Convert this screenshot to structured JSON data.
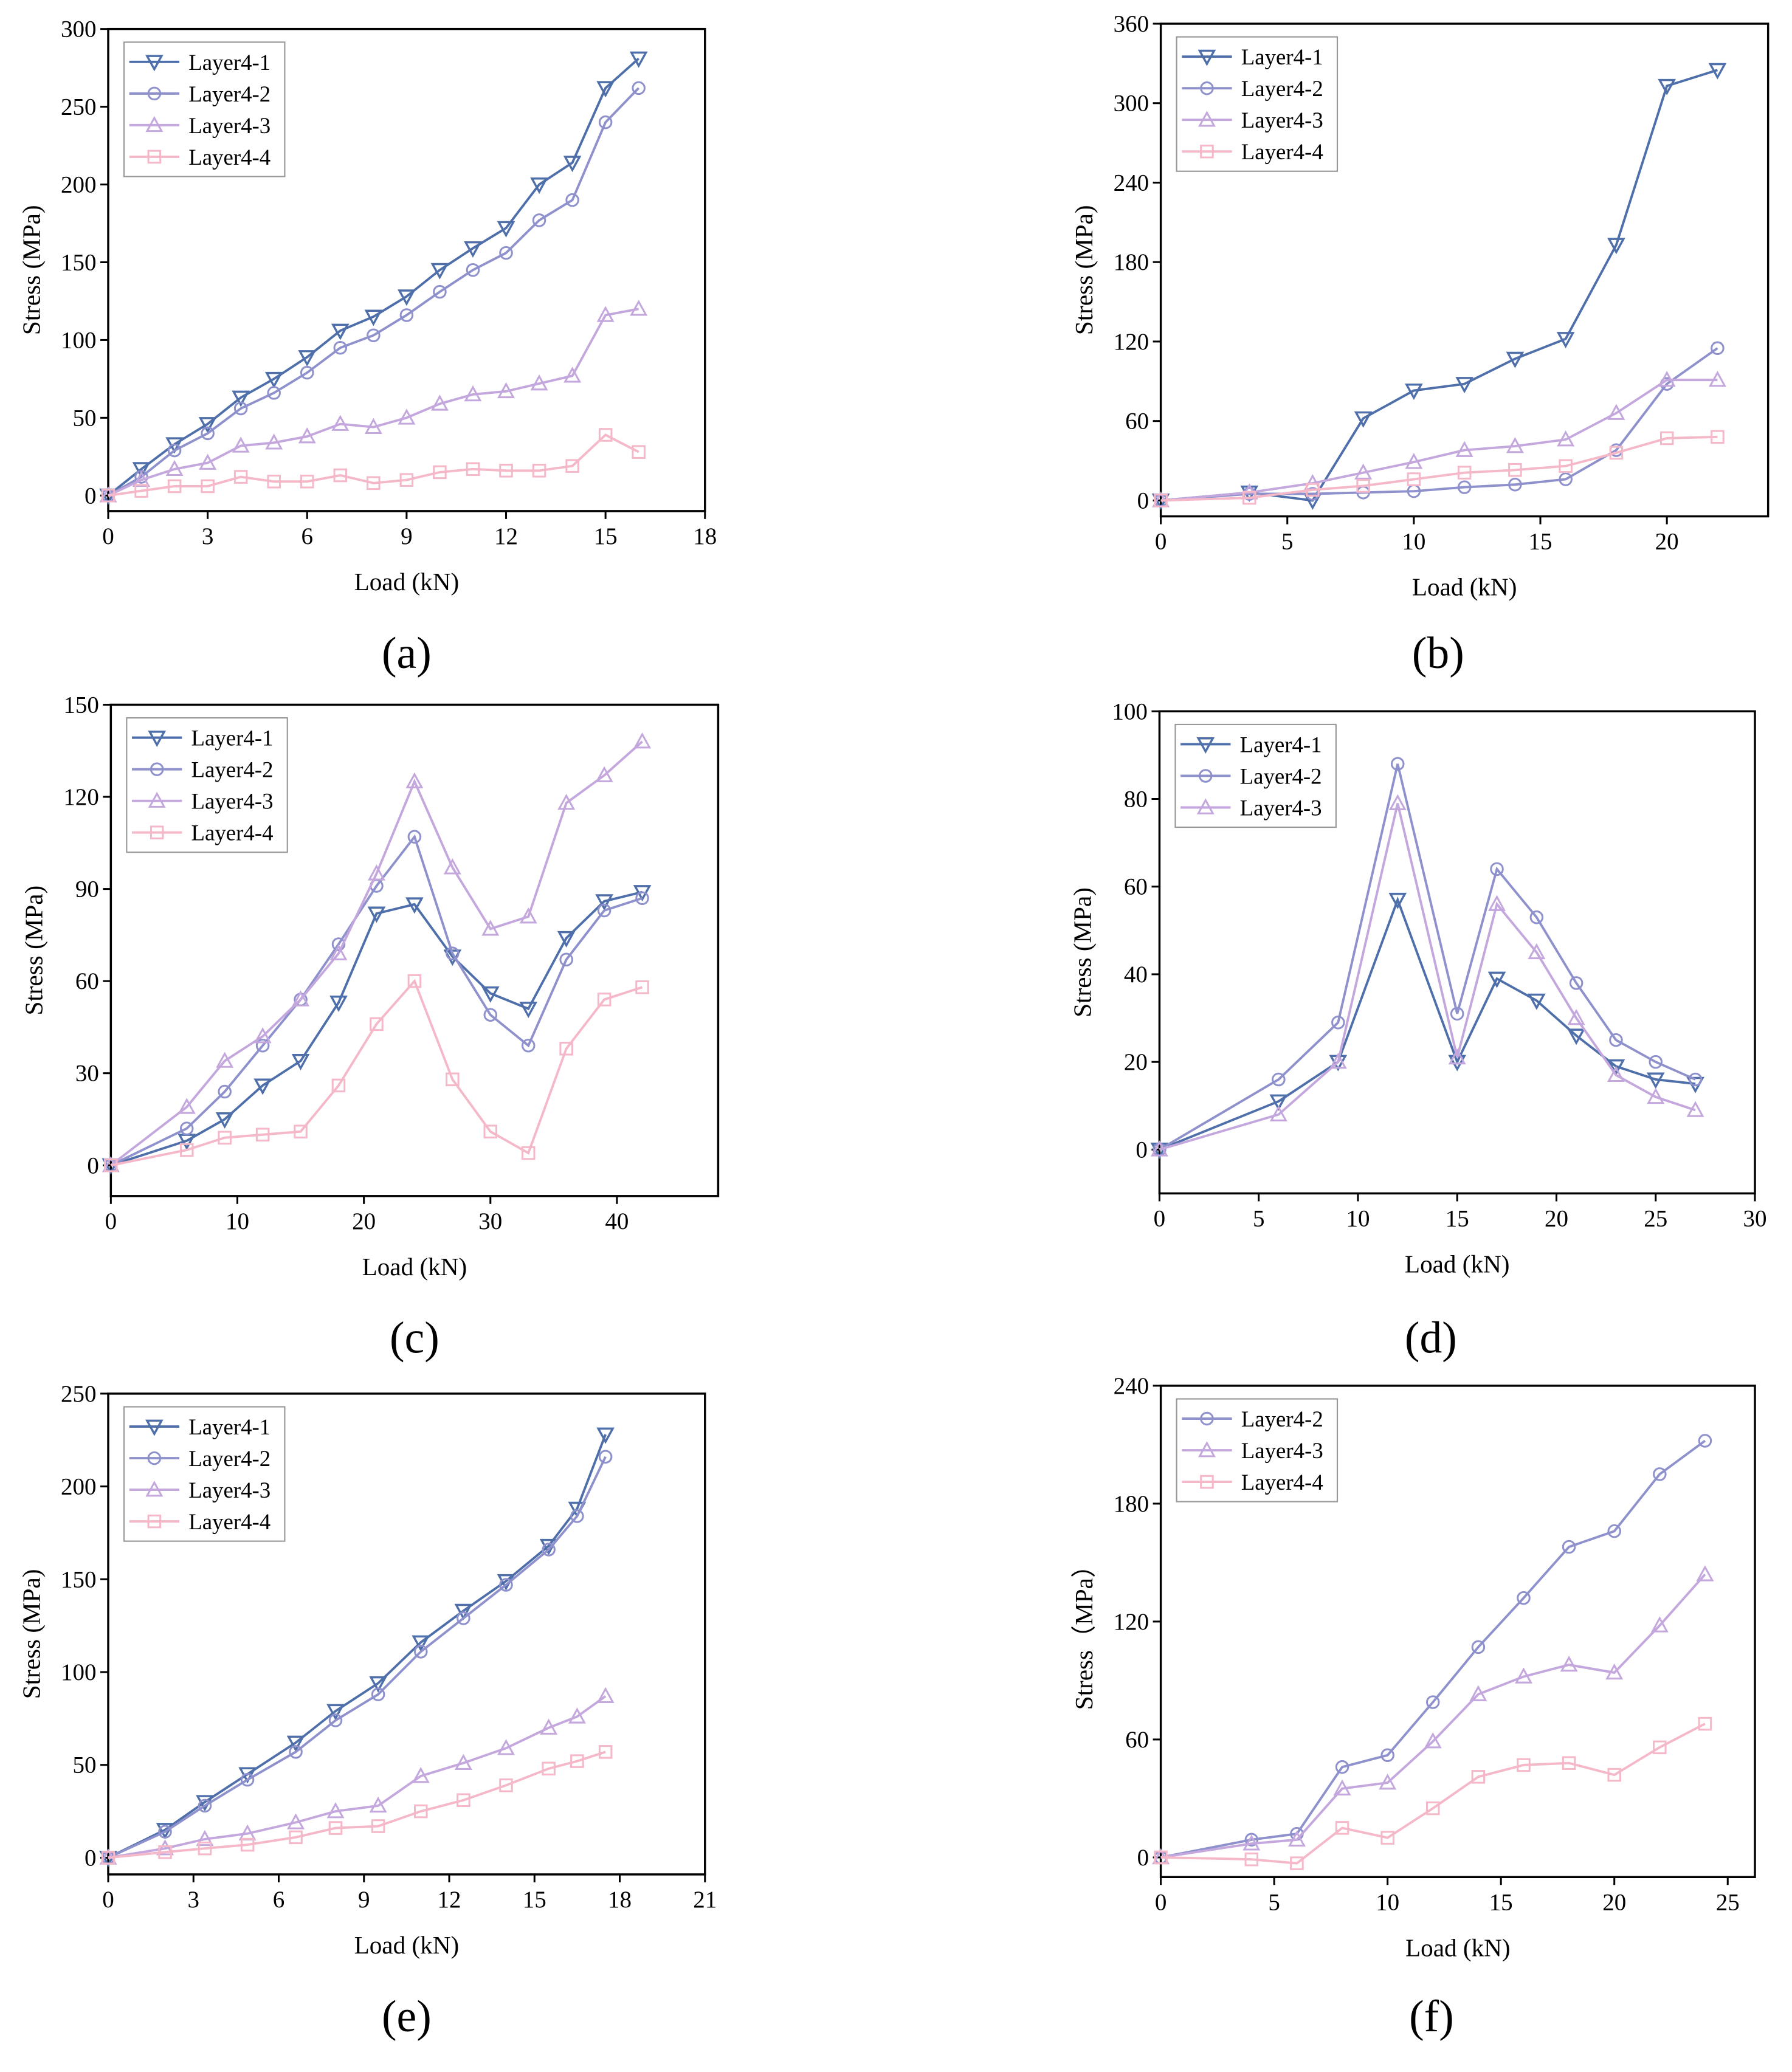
{
  "colors": {
    "Layer4-1": "#4e6faa",
    "Layer4-2": "#8e91cc",
    "Layer4-3": "#c3a7dd",
    "Layer4-4": "#f5b8c8"
  },
  "chart_data": [
    {
      "type": "line",
      "caption": "(a)",
      "xlabel": "Load (kN)",
      "ylabel": "Stress (MPa)",
      "xlim": [
        0,
        18
      ],
      "ylim": [
        -10,
        300
      ],
      "xticks": [
        0,
        3,
        6,
        9,
        12,
        15,
        18
      ],
      "yticks": [
        0,
        50,
        100,
        150,
        200,
        250,
        300
      ],
      "legend": "top-left",
      "x": [
        0,
        1,
        2,
        3,
        4,
        5,
        6,
        7,
        8,
        9,
        10,
        11,
        12,
        13,
        14,
        15,
        16
      ],
      "series": [
        {
          "name": "Layer4-1",
          "marker": "triangle-down",
          "values": [
            0,
            17,
            33,
            46,
            63,
            75,
            89,
            106,
            115,
            128,
            145,
            159,
            172,
            200,
            214,
            262,
            281
          ]
        },
        {
          "name": "Layer4-2",
          "marker": "circle",
          "values": [
            0,
            12,
            29,
            40,
            56,
            66,
            79,
            95,
            103,
            116,
            131,
            145,
            156,
            177,
            190,
            240,
            262
          ]
        },
        {
          "name": "Layer4-3",
          "marker": "triangle-up",
          "values": [
            0,
            10,
            17,
            21,
            32,
            34,
            38,
            46,
            44,
            50,
            59,
            65,
            67,
            72,
            77,
            116,
            120
          ]
        },
        {
          "name": "Layer4-4",
          "marker": "square",
          "values": [
            0,
            3,
            6,
            6,
            12,
            9,
            9,
            13,
            8,
            10,
            15,
            17,
            16,
            16,
            19,
            39,
            28
          ]
        }
      ]
    },
    {
      "type": "line",
      "caption": "(b)",
      "xlabel": "Load (kN)",
      "ylabel": "Stress (MPa)",
      "xlim": [
        0,
        24
      ],
      "ylim": [
        -12,
        360
      ],
      "xticks": [
        0,
        5,
        10,
        15,
        20
      ],
      "yticks": [
        0,
        60,
        120,
        180,
        240,
        300,
        360
      ],
      "legend": "top-left",
      "x": [
        0,
        3.5,
        6,
        8,
        10,
        12,
        14,
        16,
        18,
        20,
        22
      ],
      "series": [
        {
          "name": "Layer4-1",
          "marker": "triangle-down",
          "values": [
            0,
            6,
            0,
            62,
            83,
            88,
            107,
            122,
            193,
            313,
            325
          ]
        },
        {
          "name": "Layer4-2",
          "marker": "circle",
          "values": [
            0,
            5,
            5,
            6,
            7,
            10,
            12,
            16,
            38,
            88,
            115
          ]
        },
        {
          "name": "Layer4-3",
          "marker": "triangle-up",
          "values": [
            0,
            6,
            13,
            21,
            29,
            38,
            41,
            46,
            66,
            91,
            91
          ]
        },
        {
          "name": "Layer4-4",
          "marker": "square",
          "values": [
            0,
            2,
            8,
            11,
            16,
            21,
            23,
            26,
            36,
            47,
            48
          ]
        }
      ]
    },
    {
      "type": "line",
      "caption": "(c)",
      "xlabel": "Load (kN)",
      "ylabel": "Stress (MPa)",
      "xlim": [
        0,
        48
      ],
      "ylim": [
        -10,
        150
      ],
      "xticks": [
        0,
        10,
        20,
        30,
        40
      ],
      "yticks": [
        0,
        30,
        60,
        90,
        120,
        150
      ],
      "legend": "top-left",
      "x": [
        0,
        6,
        9,
        12,
        15,
        18,
        21,
        24,
        27,
        30,
        33,
        36,
        39,
        42
      ],
      "series": [
        {
          "name": "Layer4-1",
          "marker": "triangle-down",
          "values": [
            0,
            8,
            15,
            26,
            34,
            53,
            82,
            85,
            68,
            56,
            51,
            74,
            86,
            89
          ]
        },
        {
          "name": "Layer4-2",
          "marker": "circle",
          "values": [
            0,
            12,
            24,
            39,
            54,
            72,
            91,
            107,
            69,
            49,
            39,
            67,
            83,
            87
          ]
        },
        {
          "name": "Layer4-3",
          "marker": "triangle-up",
          "values": [
            0,
            19,
            34,
            42,
            54,
            69,
            95,
            125,
            97,
            77,
            81,
            118,
            127,
            138
          ]
        },
        {
          "name": "Layer4-4",
          "marker": "square",
          "values": [
            0,
            5,
            9,
            10,
            11,
            26,
            46,
            60,
            28,
            11,
            4,
            38,
            54,
            58
          ]
        }
      ]
    },
    {
      "type": "line",
      "caption": "(d)",
      "xlabel": "Load (kN)",
      "ylabel": "Stress (MPa)",
      "xlim": [
        0,
        30
      ],
      "ylim": [
        -10,
        100
      ],
      "xticks": [
        0,
        5,
        10,
        15,
        20,
        25,
        30
      ],
      "yticks": [
        0,
        20,
        40,
        60,
        80,
        100
      ],
      "legend": "top-left",
      "x": [
        0,
        6,
        9,
        12,
        15,
        17,
        19,
        21,
        23,
        25,
        27
      ],
      "series": [
        {
          "name": "Layer4-1",
          "marker": "triangle-down",
          "values": [
            0,
            11,
            20,
            57,
            20,
            39,
            34,
            26,
            19,
            16,
            15
          ]
        },
        {
          "name": "Layer4-2",
          "marker": "circle",
          "values": [
            0,
            16,
            29,
            88,
            31,
            64,
            53,
            38,
            25,
            20,
            16
          ]
        },
        {
          "name": "Layer4-3",
          "marker": "triangle-up",
          "values": [
            0,
            8,
            20,
            79,
            21,
            56,
            45,
            30,
            17,
            12,
            9
          ]
        }
      ]
    },
    {
      "type": "line",
      "caption": "(e)",
      "xlabel": "Load (kN)",
      "ylabel": "Stress (MPa)",
      "xlim": [
        0,
        21
      ],
      "ylim": [
        -9,
        250
      ],
      "xticks": [
        0,
        3,
        6,
        9,
        12,
        15,
        18,
        21
      ],
      "yticks": [
        0,
        50,
        100,
        150,
        200,
        250
      ],
      "legend": "top-left",
      "x": [
        0,
        2,
        3.4,
        4.9,
        6.6,
        8,
        9.5,
        11,
        12.5,
        14,
        15.5,
        16.5,
        17.5
      ],
      "series": [
        {
          "name": "Layer4-1",
          "marker": "triangle-down",
          "values": [
            0,
            15,
            30,
            45,
            62,
            79,
            94,
            116,
            133,
            149,
            168,
            188,
            228
          ]
        },
        {
          "name": "Layer4-2",
          "marker": "circle",
          "values": [
            0,
            14,
            28,
            42,
            57,
            74,
            88,
            111,
            129,
            147,
            166,
            184,
            216
          ]
        },
        {
          "name": "Layer4-3",
          "marker": "triangle-up",
          "values": [
            0,
            5,
            10,
            13,
            19,
            25,
            28,
            44,
            51,
            59,
            70,
            76,
            87
          ]
        },
        {
          "name": "Layer4-4",
          "marker": "square",
          "values": [
            0,
            3,
            5,
            7,
            11,
            16,
            17,
            25,
            31,
            39,
            48,
            52,
            57
          ]
        }
      ]
    },
    {
      "type": "line",
      "caption": "(f)",
      "xlabel": "Load (kN)",
      "ylabel": "Stress（MPa）",
      "xlim": [
        0,
        26.2
      ],
      "ylim": [
        -10,
        240
      ],
      "xticks": [
        0,
        5,
        10,
        15,
        20,
        25
      ],
      "yticks": [
        0,
        60,
        120,
        180,
        240
      ],
      "legend": "top-left",
      "x": [
        0,
        4,
        6,
        8,
        10,
        12,
        14,
        16,
        18,
        20,
        22,
        24
      ],
      "series": [
        {
          "name": "Layer4-2",
          "marker": "circle",
          "values": [
            0,
            9,
            12,
            46,
            52,
            79,
            107,
            132,
            158,
            166,
            195,
            212
          ]
        },
        {
          "name": "Layer4-3",
          "marker": "triangle-up",
          "values": [
            0,
            7,
            9,
            35,
            38,
            59,
            83,
            92,
            98,
            94,
            118,
            144
          ]
        },
        {
          "name": "Layer4-4",
          "marker": "square",
          "values": [
            0,
            -1,
            -3,
            15,
            10,
            25,
            41,
            47,
            48,
            42,
            56,
            68
          ]
        }
      ]
    }
  ]
}
